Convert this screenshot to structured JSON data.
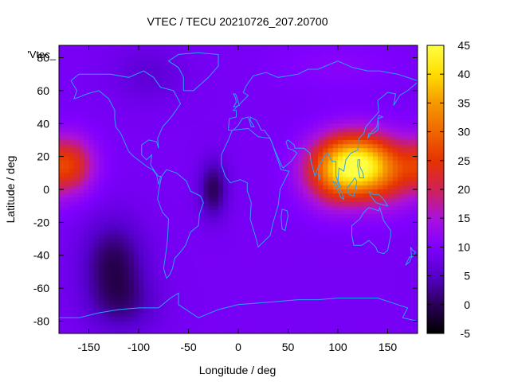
{
  "chart_data": {
    "type": "heatmap",
    "title": "VTEC / TECU 20210726_207.20700",
    "xlabel": "Longitude / deg",
    "ylabel": "Latitude / deg",
    "key_label": "'Vtec_",
    "xlim": [
      -180,
      180
    ],
    "ylim": [
      -87.5,
      87.5
    ],
    "x_ticks": [
      -150,
      -100,
      -50,
      0,
      50,
      100,
      150
    ],
    "x_tick_labels": [
      "-150",
      "-100",
      "-50",
      "0",
      "50",
      "100",
      "150"
    ],
    "y_ticks": [
      -80,
      -60,
      -40,
      -20,
      0,
      20,
      40,
      60,
      80
    ],
    "y_tick_labels": [
      "-80",
      "-60",
      "-40",
      "-20",
      "0",
      "20",
      "40",
      "60",
      "80"
    ],
    "colorbar_range": [
      -5,
      45
    ],
    "colorbar_ticks": [
      -5,
      0,
      5,
      10,
      15,
      20,
      25,
      30,
      35,
      40,
      45
    ],
    "colorbar_tick_labels": [
      "-5",
      "0",
      "5",
      "10",
      "15",
      "20",
      "25",
      "30",
      "35",
      "40",
      "45"
    ],
    "grid": false,
    "legend": "top-left",
    "base_value": 9,
    "features": [
      {
        "lon": 120,
        "lat": 15,
        "sx": 28,
        "sy": 13,
        "amp": 32
      },
      {
        "lon": 95,
        "lat": 8,
        "sx": 22,
        "sy": 14,
        "amp": 10
      },
      {
        "lon": 150,
        "lat": 5,
        "sx": 22,
        "sy": 14,
        "amp": 6
      },
      {
        "lon": -170,
        "lat": 15,
        "sx": 18,
        "sy": 12,
        "amp": 15
      },
      {
        "lon": -125,
        "lat": -45,
        "sx": 22,
        "sy": 18,
        "amp": -9
      },
      {
        "lon": -25,
        "lat": 0,
        "sx": 10,
        "sy": 12,
        "amp": -9
      },
      {
        "lon": -115,
        "lat": -70,
        "sx": 25,
        "sy": 12,
        "amp": -5
      },
      {
        "lon": -90,
        "lat": 70,
        "sx": 25,
        "sy": 12,
        "amp": -3
      },
      {
        "lon": 100,
        "lat": 75,
        "sx": 40,
        "sy": 10,
        "amp": 2
      }
    ]
  }
}
